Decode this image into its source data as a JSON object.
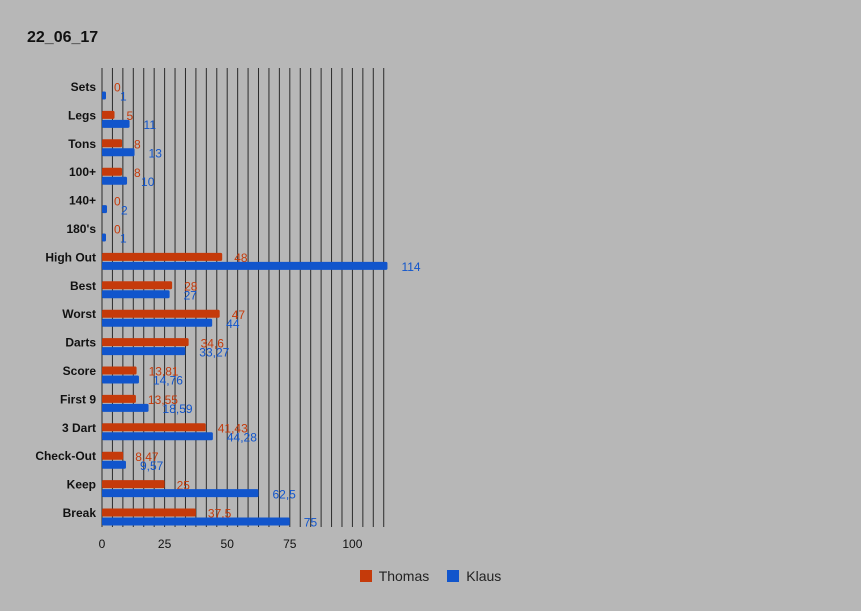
{
  "chart_data": {
    "type": "bar",
    "orientation": "horizontal",
    "title": "22_06_17",
    "categories": [
      "Sets",
      "Legs",
      "Tons",
      "100+",
      "140+",
      "180's",
      "High Out",
      "Best",
      "Worst",
      "Darts",
      "Score",
      "First 9",
      "3 Dart",
      "Check-Out",
      "Keep",
      "Break"
    ],
    "series": [
      {
        "name": "Thomas",
        "color": "#c53a0a",
        "values": [
          0,
          5,
          8,
          8,
          0,
          0,
          48,
          28,
          47,
          34.6,
          13.81,
          13.55,
          41.43,
          8.47,
          25,
          37.5
        ],
        "labels": [
          "0",
          "5",
          "8",
          "8",
          "0",
          "0",
          "48",
          "28",
          "47",
          "34,6",
          "13,81",
          "13,55",
          "41,43",
          "8,47",
          "25",
          "37,5"
        ]
      },
      {
        "name": "Klaus",
        "color": "#1155cc",
        "values": [
          1,
          11,
          13,
          10,
          2,
          1,
          114,
          27,
          44,
          33.27,
          14.76,
          18.59,
          44.28,
          9.57,
          62.5,
          75
        ],
        "labels": [
          "1",
          "11",
          "13",
          "10",
          "2",
          "1",
          "114",
          "27",
          "44",
          "33,27",
          "14,76",
          "18,59",
          "44,28",
          "9,57",
          "62,5",
          "75"
        ]
      }
    ],
    "xlim": [
      0,
      115
    ],
    "xticks": [
      0,
      25,
      50,
      75,
      100
    ],
    "minor_grid_step": 4.167,
    "grid": true,
    "legend_position": "bottom"
  }
}
